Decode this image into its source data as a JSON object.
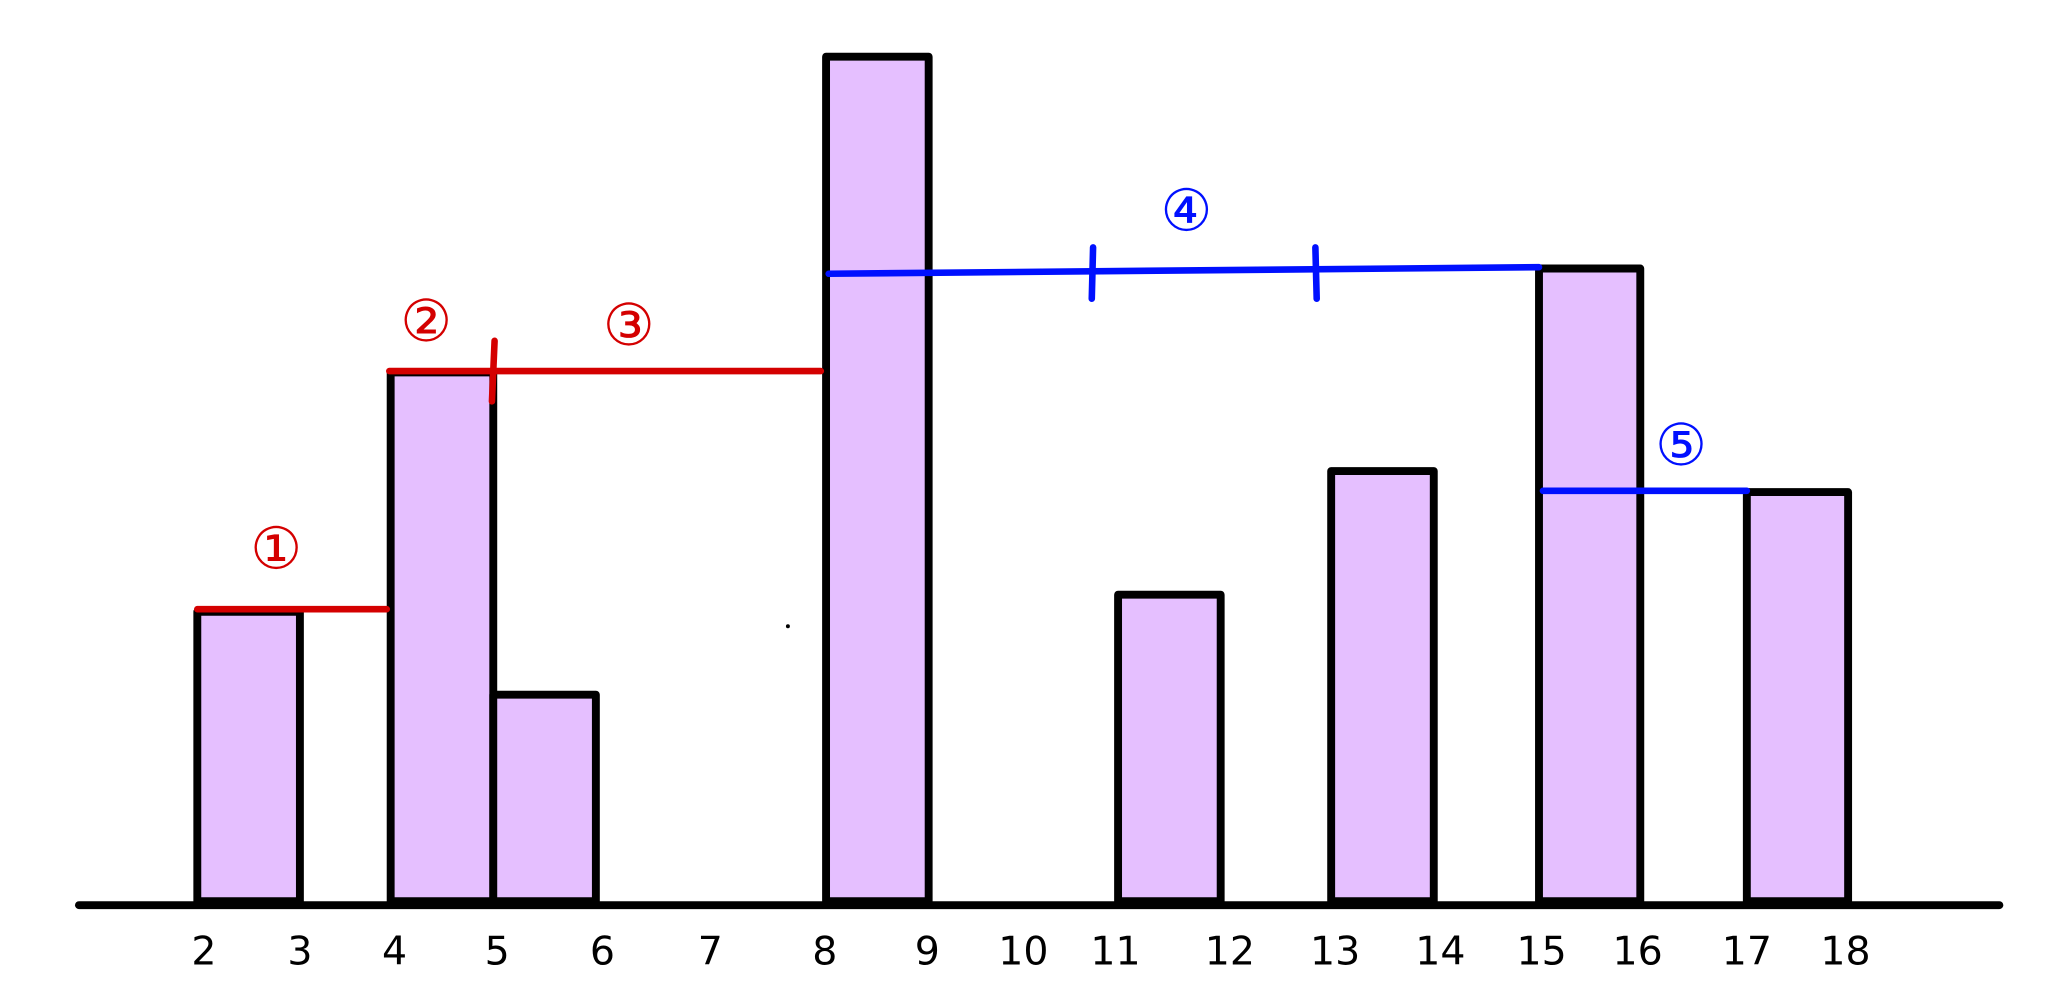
{
  "axis_labels": [
    "2",
    "3",
    "4",
    "5",
    "6",
    "7",
    "8",
    "9",
    "10",
    "11",
    "12",
    "13",
    "14",
    "15",
    "16",
    "17",
    "18"
  ],
  "annotations": [
    "①",
    "②",
    "③",
    "④",
    "⑤"
  ]
}
